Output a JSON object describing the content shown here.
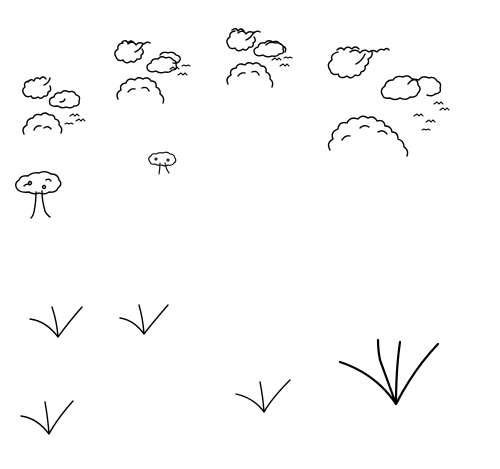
{
  "canvas": {
    "background": "#ffffff",
    "ink_color": "#000000"
  },
  "scene": {
    "sky_groups": [
      {
        "name": "sky-group-1",
        "icons": [
          "scalloped-cloud-icon",
          "cloud-icon",
          "birds-icon",
          "bush-icon"
        ]
      },
      {
        "name": "sky-group-2",
        "icons": [
          "scalloped-cloud-icon",
          "cloud-icon",
          "birds-icon",
          "bush-icon"
        ]
      },
      {
        "name": "sky-group-3",
        "icons": [
          "scalloped-cloud-icon",
          "cloud-icon",
          "birds-icon",
          "bush-icon"
        ]
      },
      {
        "name": "sky-group-4",
        "icons": [
          "scalloped-cloud-icon",
          "cloud-icon",
          "birds-icon",
          "bush-icon"
        ]
      }
    ],
    "trees": [
      {
        "name": "tree-large",
        "icon": "mushroom-tree-icon"
      },
      {
        "name": "tree-small",
        "icon": "mushroom-tree-icon"
      }
    ],
    "grass_tufts": [
      {
        "name": "grass-tuft-1",
        "icon": "grass-tuft-icon"
      },
      {
        "name": "grass-tuft-2",
        "icon": "grass-tuft-icon"
      },
      {
        "name": "grass-tuft-3",
        "icon": "grass-tuft-icon"
      },
      {
        "name": "grass-tuft-4",
        "icon": "grass-tuft-icon"
      },
      {
        "name": "grass-tuft-5",
        "icon": "grass-tuft-icon"
      }
    ]
  }
}
